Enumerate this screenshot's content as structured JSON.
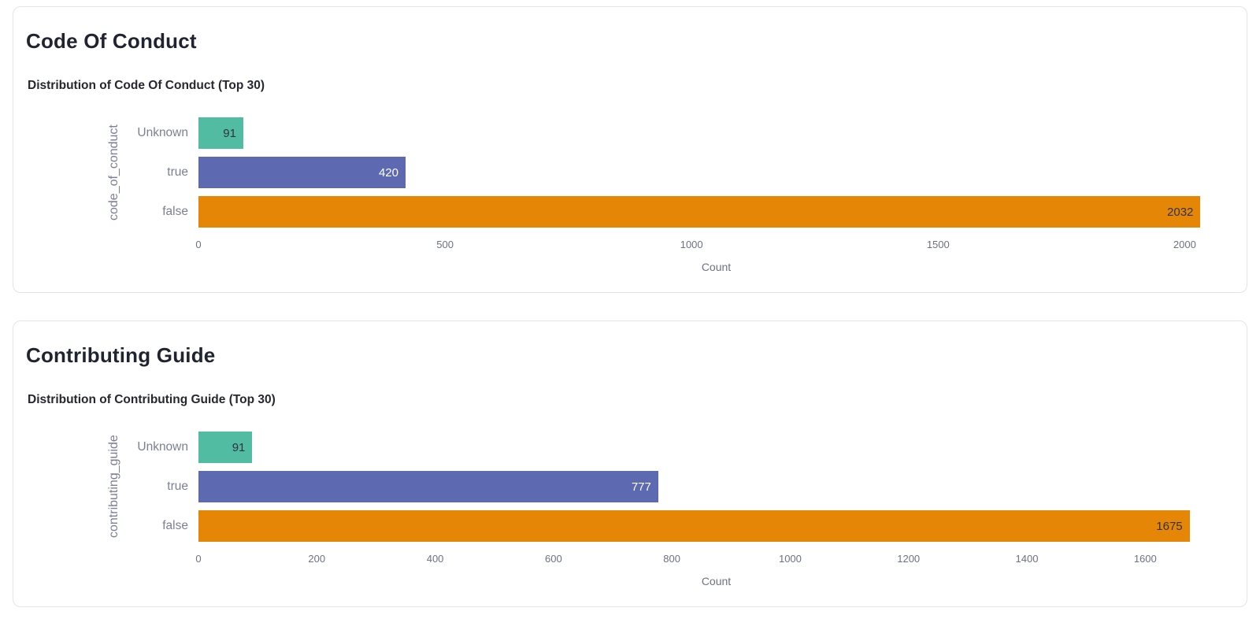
{
  "panels": [
    {
      "title": "Code Of Conduct"
    },
    {
      "title": "Contributing Guide"
    }
  ],
  "chart_data": [
    {
      "type": "bar",
      "orientation": "horizontal",
      "title": "Distribution of Code Of Conduct (Top 30)",
      "categories": [
        "Unknown",
        "true",
        "false"
      ],
      "values": [
        91,
        420,
        2032
      ],
      "colors": [
        "#52BCA3",
        "#5D69B1",
        "#E58606"
      ],
      "value_label_colors": [
        "#31333F",
        "#FFFFFF",
        "#31333F"
      ],
      "xlabel": "Count",
      "ylabel": "code_of_conduct",
      "x_ticks": [
        0,
        500,
        1000,
        1500,
        2000
      ],
      "xlim": [
        0,
        2100
      ],
      "grid": false,
      "legend": false
    },
    {
      "type": "bar",
      "orientation": "horizontal",
      "title": "Distribution of Contributing Guide (Top 30)",
      "categories": [
        "Unknown",
        "true",
        "false"
      ],
      "values": [
        91,
        777,
        1675
      ],
      "colors": [
        "#52BCA3",
        "#5D69B1",
        "#E58606"
      ],
      "value_label_colors": [
        "#31333F",
        "#FFFFFF",
        "#31333F"
      ],
      "xlabel": "Count",
      "ylabel": "contributing_guide",
      "x_ticks": [
        0,
        200,
        400,
        600,
        800,
        1000,
        1200,
        1400,
        1600
      ],
      "xlim": [
        0,
        1750
      ],
      "grid": false,
      "legend": false
    }
  ]
}
